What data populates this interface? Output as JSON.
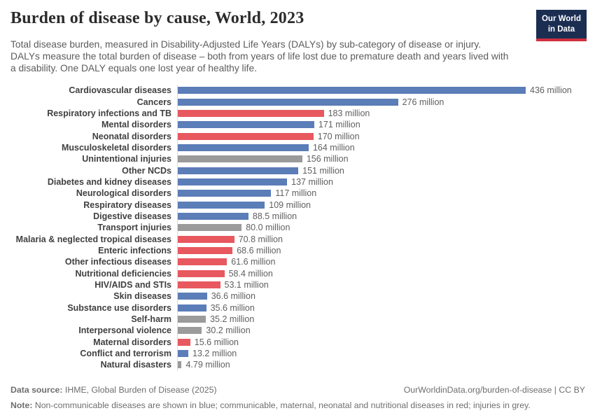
{
  "header": {
    "title": "Burden of disease by cause, World, 2023",
    "subtitle": "Total disease burden, measured in Disability-Adjusted Life Years (DALYs) by sub-category of disease or injury. DALYs measure the total burden of disease – both from years of life lost due to premature death and years lived with a disability. One DALY equals one lost year of healthy life.",
    "logo": {
      "line1": "Our World",
      "line2": "in Data"
    }
  },
  "chart_data": {
    "type": "bar",
    "orientation": "horizontal",
    "title": "Burden of disease by cause, World, 2023",
    "unit": "DALYs (million)",
    "xlim": [
      0,
      436
    ],
    "grid": false,
    "legend": "none",
    "colors": {
      "blue": "#5b7db8",
      "red": "#e8585f",
      "grey": "#9b9b9b"
    },
    "color_meaning": {
      "blue": "Non-communicable diseases",
      "red": "Communicable, maternal, neonatal and nutritional diseases",
      "grey": "Injuries"
    },
    "rows": [
      {
        "label": "Cardiovascular diseases",
        "value": 436,
        "value_label": "436 million",
        "color": "blue"
      },
      {
        "label": "Cancers",
        "value": 276,
        "value_label": "276 million",
        "color": "blue"
      },
      {
        "label": "Respiratory infections and TB",
        "value": 183,
        "value_label": "183 million",
        "color": "red"
      },
      {
        "label": "Mental disorders",
        "value": 171,
        "value_label": "171 million",
        "color": "blue"
      },
      {
        "label": "Neonatal disorders",
        "value": 170,
        "value_label": "170 million",
        "color": "red"
      },
      {
        "label": "Musculoskeletal disorders",
        "value": 164,
        "value_label": "164 million",
        "color": "blue"
      },
      {
        "label": "Unintentional injuries",
        "value": 156,
        "value_label": "156 million",
        "color": "grey"
      },
      {
        "label": "Other NCDs",
        "value": 151,
        "value_label": "151 million",
        "color": "blue"
      },
      {
        "label": "Diabetes and kidney diseases",
        "value": 137,
        "value_label": "137 million",
        "color": "blue"
      },
      {
        "label": "Neurological disorders",
        "value": 117,
        "value_label": "117 million",
        "color": "blue"
      },
      {
        "label": "Respiratory diseases",
        "value": 109,
        "value_label": "109 million",
        "color": "blue"
      },
      {
        "label": "Digestive diseases",
        "value": 88.5,
        "value_label": "88.5 million",
        "color": "blue"
      },
      {
        "label": "Transport injuries",
        "value": 80.0,
        "value_label": "80.0 million",
        "color": "grey"
      },
      {
        "label": "Malaria & neglected tropical diseases",
        "value": 70.8,
        "value_label": "70.8 million",
        "color": "red"
      },
      {
        "label": "Enteric infections",
        "value": 68.6,
        "value_label": "68.6 million",
        "color": "red"
      },
      {
        "label": "Other infectious diseases",
        "value": 61.6,
        "value_label": "61.6 million",
        "color": "red"
      },
      {
        "label": "Nutritional deficiencies",
        "value": 58.4,
        "value_label": "58.4 million",
        "color": "red"
      },
      {
        "label": "HIV/AIDS and STIs",
        "value": 53.1,
        "value_label": "53.1 million",
        "color": "red"
      },
      {
        "label": "Skin diseases",
        "value": 36.6,
        "value_label": "36.6 million",
        "color": "blue"
      },
      {
        "label": "Substance use disorders",
        "value": 35.6,
        "value_label": "35.6 million",
        "color": "blue"
      },
      {
        "label": "Self-harm",
        "value": 35.2,
        "value_label": "35.2 million",
        "color": "grey"
      },
      {
        "label": "Interpersonal violence",
        "value": 30.2,
        "value_label": "30.2 million",
        "color": "grey"
      },
      {
        "label": "Maternal disorders",
        "value": 15.6,
        "value_label": "15.6 million",
        "color": "red"
      },
      {
        "label": "Conflict and terrorism",
        "value": 13.2,
        "value_label": "13.2 million",
        "color": "blue"
      },
      {
        "label": "Natural disasters",
        "value": 4.79,
        "value_label": "4.79 million",
        "color": "grey"
      }
    ]
  },
  "footer": {
    "source_prefix": "Data source:",
    "source_text": " IHME, Global Burden of Disease (2025)",
    "link_text": "OurWorldinData.org/burden-of-disease | CC BY",
    "note_prefix": "Note:",
    "note_text": " Non-communicable diseases are shown in blue; communicable, maternal, neonatal and nutritional diseases in red; injuries in grey."
  }
}
